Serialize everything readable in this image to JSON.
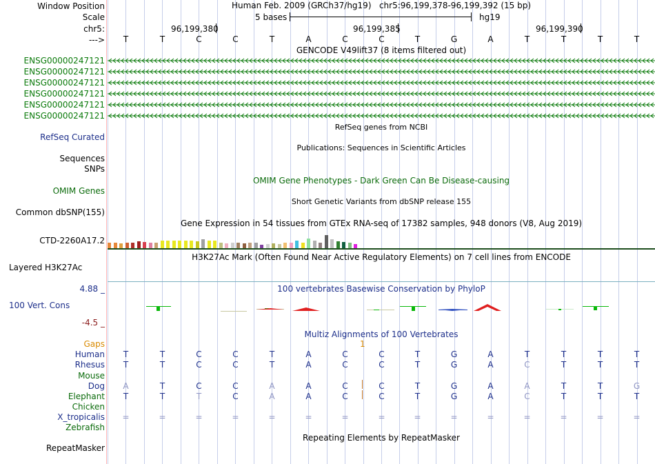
{
  "labels": {
    "window_position": "Window Position",
    "scale": "Scale",
    "chr": "chr5:",
    "arrow": "--->",
    "ensg": [
      "ENSG00000247121",
      "ENSG00000247121",
      "ENSG00000247121",
      "ENSG00000247121",
      "ENSG00000247121",
      "ENSG00000247121"
    ],
    "refseq": "RefSeq Curated",
    "sequences": "Sequences",
    "snps": "SNPs",
    "omim": "OMIM Genes",
    "dbsnp": "Common dbSNP(155)",
    "gtex": "CTD-2260A17.2",
    "h3k27ac": "Layered H3K27Ac",
    "cons_max": "4.88 _",
    "cons": "100 Vert. Cons",
    "cons_min": "-4.5 _",
    "species": [
      "Gaps",
      "Human",
      "Rhesus",
      "Mouse",
      "Dog",
      "Elephant",
      "Chicken",
      "X_tropicalis",
      "Zebrafish"
    ],
    "repeatmasker": "RepeatMasker"
  },
  "header": {
    "assembly": "Human Feb. 2009 (GRCh37/hg19)",
    "position": "chr5:96,199,378-96,199,392 (15 bp)",
    "scale_text": "5 bases",
    "db": "hg19",
    "coord1": "96,199,380",
    "coord2": "96,199,385",
    "coord3": "96,199,390"
  },
  "sequence": [
    "T",
    "T",
    "C",
    "C",
    "T",
    "A",
    "C",
    "C",
    "T",
    "G",
    "A",
    "T",
    "T",
    "T",
    "T"
  ],
  "tracks": {
    "gencode": "GENCODE V49lift37 (8 items filtered out)",
    "refseq": "RefSeq genes from NCBI",
    "publications": "Publications: Sequences in Scientific Articles",
    "omim": "OMIM Gene Phenotypes - Dark Green Can Be Disease-causing",
    "dbsnp": "Short Genetic Variants from dbSNP release 155",
    "gtex": "Gene Expression in 54 tissues from GTEx RNA-seq of 17382 samples, 948 donors (V8, Aug 2019)",
    "h3k27ac": "H3K27Ac Mark (Often Found Near Active Regulatory Elements) on 7 cell lines from ENCODE",
    "phylop": "100 vertebrates Basewise Conservation by PhyloP",
    "multiz": "Multiz Alignments of 100 Vertebrates",
    "repeatmasker": "Repeating Elements by RepeatMasker",
    "gap_count": "1"
  },
  "alignment": {
    "human": [
      "T",
      "T",
      "C",
      "C",
      "T",
      "A",
      "C",
      "C",
      "T",
      "G",
      "A",
      "T",
      "T",
      "T",
      "T"
    ],
    "rhesus": [
      "T",
      "T",
      "C",
      "C",
      "T",
      "A",
      "C",
      "C",
      "T",
      "G",
      "A",
      "C",
      "T",
      "T",
      "T"
    ],
    "dog": [
      "A",
      "T",
      "C",
      "C",
      "A",
      "A",
      "C",
      "C",
      "T",
      "G",
      "A",
      "A",
      "T",
      "T",
      "G"
    ],
    "elephant": [
      "T",
      "T",
      "T",
      "C",
      "A",
      "A",
      "C",
      "C",
      "T",
      "G",
      "A",
      "C",
      "T",
      "T",
      "T"
    ],
    "xtrop": [
      "=",
      "=",
      "=",
      "=",
      "=",
      "=",
      "=",
      "=",
      "=",
      "=",
      "=",
      "=",
      "=",
      "=",
      "="
    ]
  },
  "colors": {
    "gencode_green": "#0a7a0a",
    "navy": "#1c2e8a",
    "gtex": [
      "#e6883a",
      "#e6883a",
      "#e0a040",
      "#d06030",
      "#b0302a",
      "#a02020",
      "#d84050",
      "#e080a0",
      "#c8a070",
      "#e8e820",
      "#e8e820",
      "#e8e820",
      "#e8e820",
      "#e8e820",
      "#e8e820",
      "#c8c820",
      "#a0a0a0",
      "#e8e820",
      "#e8e820",
      "#c0c080",
      "#f0b0c0",
      "#d0d0d0",
      "#a08060",
      "#906040",
      "#c0a080",
      "#a0a0a0",
      "#8040a0",
      "#d0d0d0",
      "#b0b060",
      "#c8c8a0",
      "#f0c070",
      "#f0a0c0",
      "#40c0e0",
      "#f0e020",
      "#90e0a0",
      "#b0b0b0",
      "#908080",
      "#606060",
      "#c0c0c0",
      "#308030",
      "#106040",
      "#80c080",
      "#e020e0"
    ]
  },
  "gtex_values": [
    0.55,
    0.6,
    0.5,
    0.6,
    0.55,
    0.7,
    0.65,
    0.55,
    0.6,
    0.75,
    0.75,
    0.8,
    0.75,
    0.8,
    0.8,
    0.7,
    0.9,
    0.75,
    0.8,
    0.55,
    0.5,
    0.55,
    0.6,
    0.5,
    0.6,
    0.55,
    0.35,
    0.4,
    0.5,
    0.45,
    0.6,
    0.55,
    0.75,
    0.6,
    1.0,
    0.8,
    0.6,
    1.35,
    0.9,
    0.7,
    0.65,
    0.55,
    0.4
  ]
}
